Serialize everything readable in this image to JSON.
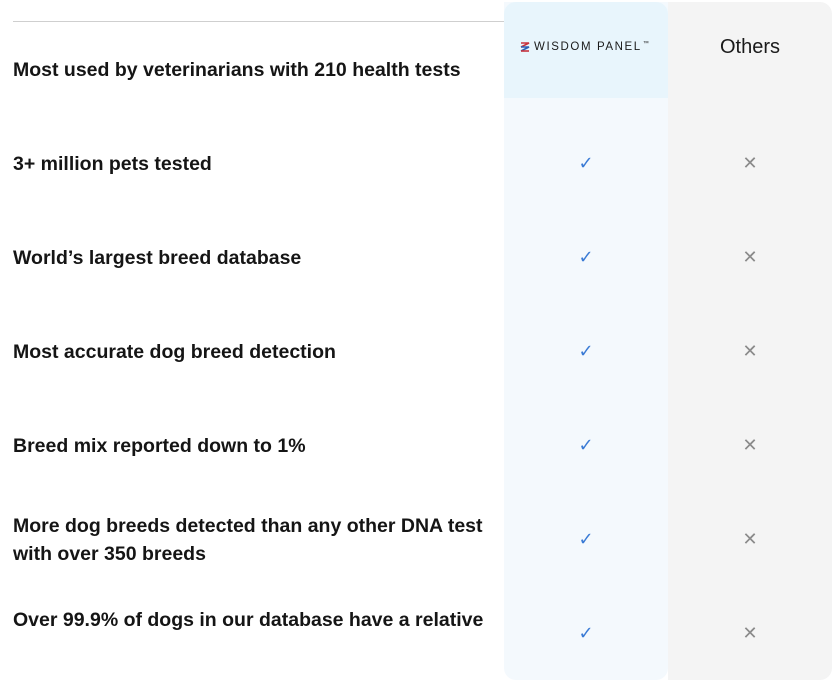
{
  "header": {
    "brand_label": "WISDOM PANEL",
    "brand_tm": "™",
    "brand_icon": "wisdom-panel-logo-icon",
    "others_label": "Others"
  },
  "colors": {
    "wisdom_column_bg": "#f4f9fd",
    "wisdom_header_bg": "#e8f5fc",
    "others_column_bg": "#f4f4f4",
    "check": "#3a7bd5",
    "cross": "#8a8a8a"
  },
  "rows": [
    {
      "feature": "Most used by veterinarians with 210 health tests",
      "wisdom": "",
      "others": ""
    },
    {
      "feature": "3+ million pets tested",
      "wisdom": "✓",
      "others": "✕"
    },
    {
      "feature": "World’s largest breed database",
      "wisdom": "✓",
      "others": "✕"
    },
    {
      "feature": "Most accurate dog breed detection",
      "wisdom": "✓",
      "others": "✕"
    },
    {
      "feature": "Breed mix reported down to 1%",
      "wisdom": "✓",
      "others": "✕"
    },
    {
      "feature": "More dog breeds detected than any other DNA test with over 350 breeds",
      "wisdom": "✓",
      "others": "✕"
    },
    {
      "feature": "Over 99.9% of dogs in our database have a relative",
      "wisdom": "✓",
      "others": "✕"
    }
  ]
}
